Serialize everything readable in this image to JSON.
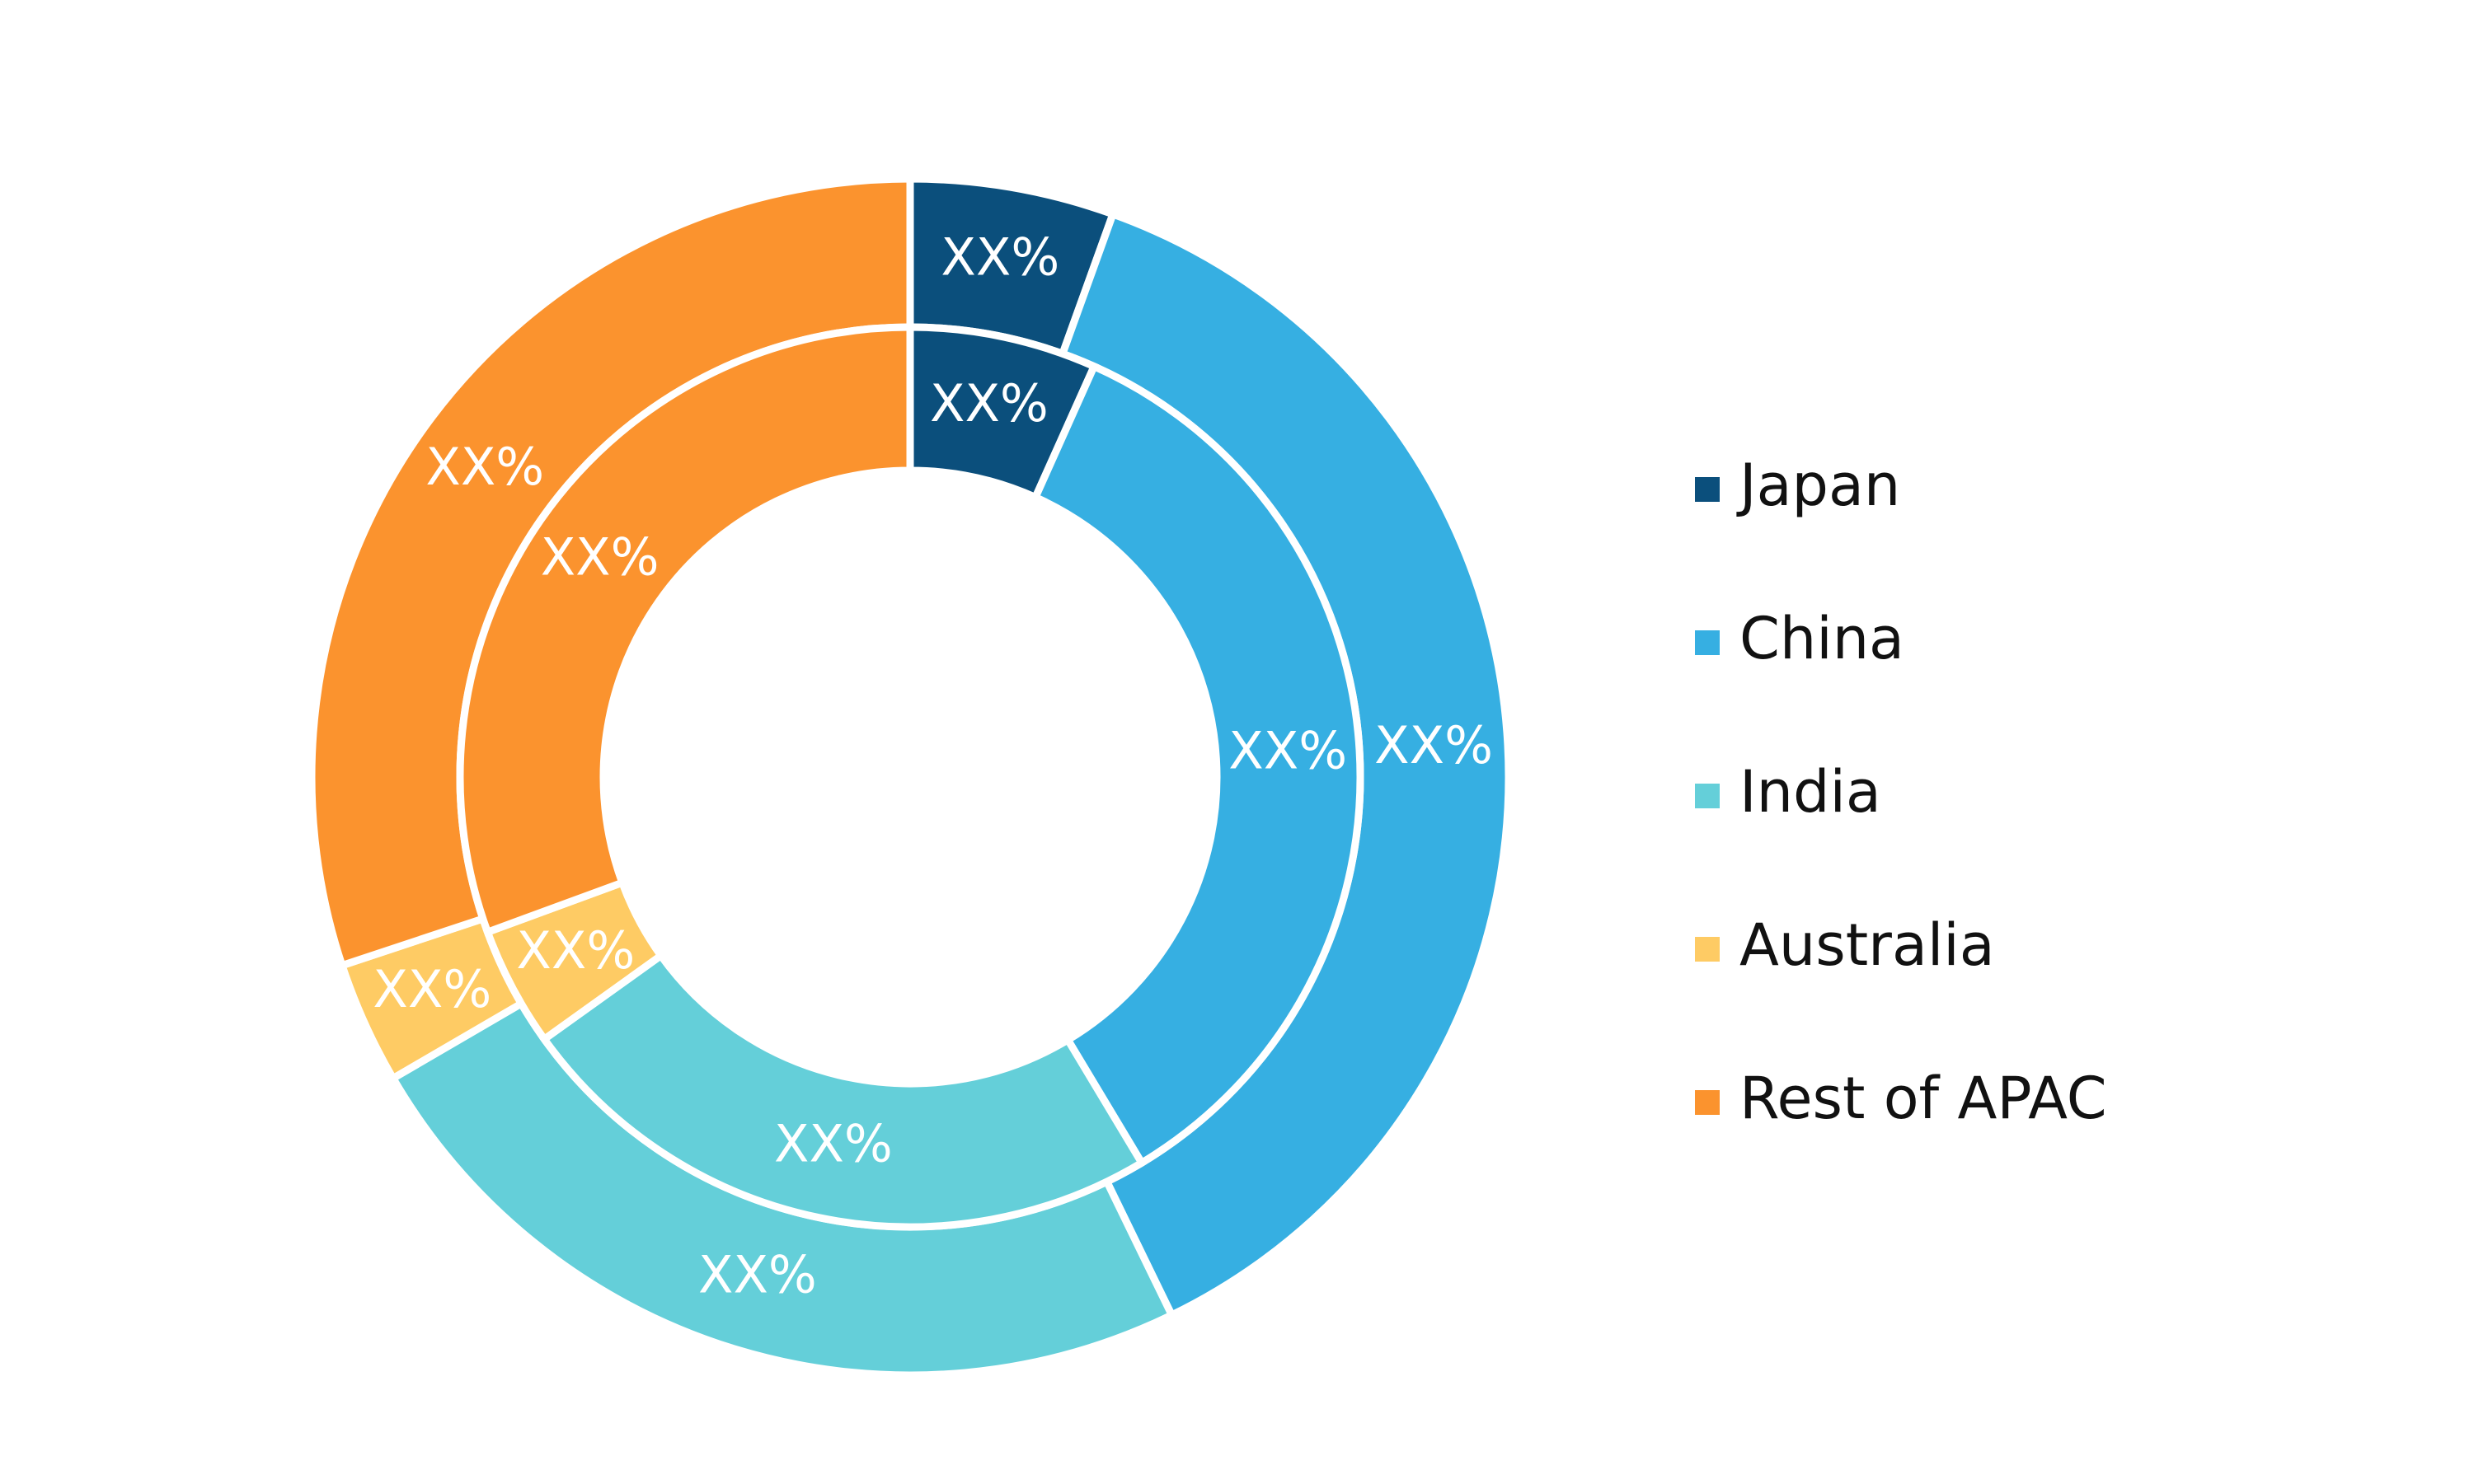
{
  "chart_data": {
    "type": "donut",
    "categories": [
      "Japan",
      "China",
      "India",
      "Australia",
      "Rest of APAC"
    ],
    "colors": [
      "#0b4f7c",
      "#36afe2",
      "#64cfd9",
      "#fecb64",
      "#fb932e"
    ],
    "series": [
      {
        "values": [
          5.5,
          37.3,
          23.8,
          3.3,
          30.1
        ],
        "value_labels": [
          "XX%",
          "XX%",
          "XX%",
          "XX%",
          "XX%"
        ]
      },
      {
        "values": [
          6.7,
          34.7,
          23.7,
          4.3,
          30.6
        ],
        "value_labels": [
          "XX%",
          "XX%",
          "XX%",
          "XX%",
          "XX%"
        ]
      }
    ],
    "legend": "right"
  }
}
